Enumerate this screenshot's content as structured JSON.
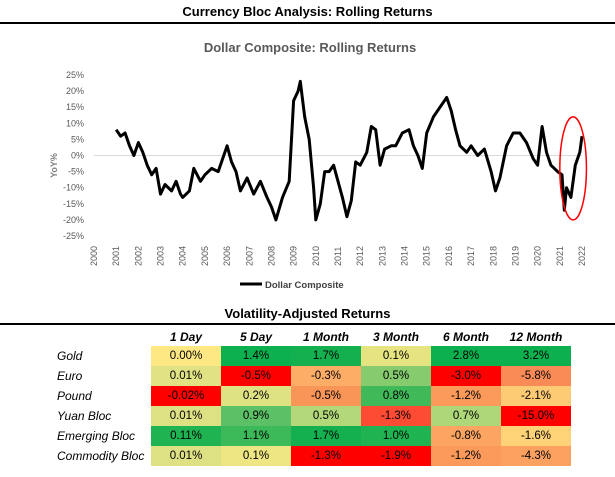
{
  "page_title": "Currency Bloc Analysis: Rolling Returns",
  "chart_data": {
    "type": "line",
    "title": "Dollar Composite: Rolling Returns",
    "ylabel": "YoY%",
    "xlabel": "",
    "ylim": [
      -25,
      25
    ],
    "xlim": [
      2000,
      2022
    ],
    "yticks": [
      "25%",
      "20%",
      "15%",
      "10%",
      "5%",
      "0%",
      "-5%",
      "-10%",
      "-15%",
      "-20%",
      "-25%"
    ],
    "xticks": [
      "2000",
      "2001",
      "2002",
      "2003",
      "2004",
      "2005",
      "2006",
      "2007",
      "2008",
      "2009",
      "2010",
      "2011",
      "2012",
      "2013",
      "2014",
      "2015",
      "2016",
      "2017",
      "2018",
      "2019",
      "2020",
      "2021",
      "2022"
    ],
    "legend": "bottom",
    "series": [
      {
        "name": "Dollar Composite",
        "color": "#000000",
        "x": [
          2001.0,
          2001.2,
          2001.4,
          2001.6,
          2001.8,
          2002.0,
          2002.2,
          2002.4,
          2002.6,
          2002.8,
          2003.0,
          2003.2,
          2003.5,
          2003.7,
          2003.9,
          2004.0,
          2004.3,
          2004.5,
          2004.8,
          2005.0,
          2005.3,
          2005.6,
          2005.9,
          2006.0,
          2006.2,
          2006.4,
          2006.6,
          2006.9,
          2007.2,
          2007.5,
          2007.8,
          2008.0,
          2008.2,
          2008.5,
          2008.8,
          2009.0,
          2009.2,
          2009.3,
          2009.5,
          2009.7,
          2009.9,
          2010.0,
          2010.2,
          2010.4,
          2010.6,
          2010.8,
          2011.0,
          2011.2,
          2011.4,
          2011.6,
          2011.8,
          2012.0,
          2012.3,
          2012.5,
          2012.7,
          2012.9,
          2013.1,
          2013.4,
          2013.6,
          2013.9,
          2014.2,
          2014.4,
          2014.6,
          2014.8,
          2015.0,
          2015.3,
          2015.6,
          2015.9,
          2016.1,
          2016.3,
          2016.5,
          2016.8,
          2017.0,
          2017.3,
          2017.6,
          2017.9,
          2018.1,
          2018.3,
          2018.6,
          2018.9,
          2019.2,
          2019.5,
          2019.8,
          2020.0,
          2020.2,
          2020.4,
          2020.6,
          2020.9,
          2021.1,
          2021.2,
          2021.3,
          2021.5,
          2021.7,
          2021.9,
          2022.0
        ],
        "y": [
          8,
          6,
          7,
          3,
          0,
          4,
          1,
          -3,
          -6,
          -4,
          -12,
          -9,
          -11,
          -8,
          -12,
          -13,
          -11,
          -4,
          -8,
          -6,
          -4,
          -5,
          1,
          3,
          -2,
          -5,
          -11,
          -7,
          -12,
          -8,
          -13,
          -16,
          -20,
          -13,
          -8,
          17,
          20,
          23,
          12,
          5,
          -10,
          -20,
          -15,
          -5,
          -5,
          -3,
          -8,
          -13,
          -19,
          -14,
          -2,
          -3,
          1,
          9,
          8,
          -3,
          2,
          3,
          3,
          7,
          8,
          3,
          0,
          -4,
          7,
          12,
          15,
          18,
          14,
          8,
          3,
          1,
          3,
          0,
          2,
          -5,
          -11,
          -7,
          3,
          7,
          7,
          4,
          -1,
          -3,
          9,
          1,
          -3,
          -5,
          -6,
          -17,
          -10,
          -13,
          -3,
          1,
          6
        ]
      }
    ],
    "annotation": {
      "type": "ellipse",
      "color": "#ff0000",
      "x_range": [
        2021.0,
        2022.2
      ],
      "y_range": [
        -20,
        12
      ]
    }
  },
  "table": {
    "title": "Volatility-Adjusted Returns",
    "columns": [
      "1 Day",
      "5 Day",
      "1 Month",
      "3 Month",
      "6 Month",
      "12 Month"
    ],
    "rows": [
      {
        "label": "Gold",
        "values": [
          "0.00%",
          "1.4%",
          "1.7%",
          "0.1%",
          "2.8%",
          "3.2%"
        ],
        "colors": [
          "#fde884",
          "#0cb04f",
          "#14b050",
          "#e6e480",
          "#0cb04f",
          "#0cb04f"
        ]
      },
      {
        "label": "Euro",
        "values": [
          "0.01%",
          "-0.5%",
          "-0.3%",
          "0.5%",
          "-3.0%",
          "-5.8%"
        ],
        "colors": [
          "#e0e283",
          "#ff0000",
          "#fdad66",
          "#86cb6d",
          "#ff0000",
          "#fb8b56"
        ]
      },
      {
        "label": "Pound",
        "values": [
          "-0.02%",
          "0.2%",
          "-0.5%",
          "0.8%",
          "-1.2%",
          "-2.1%"
        ],
        "colors": [
          "#ff0000",
          "#dfe283",
          "#fa9558",
          "#40b959",
          "#fb9a5b",
          "#fecb75"
        ]
      },
      {
        "label": "Yuan Bloc",
        "values": [
          "0.01%",
          "0.9%",
          "0.5%",
          "-1.3%",
          "0.7%",
          "-15.0%"
        ],
        "colors": [
          "#dde183",
          "#5cc166",
          "#b2d879",
          "#fe4b33",
          "#aed779",
          "#ff0000"
        ]
      },
      {
        "label": "Emerging Bloc",
        "values": [
          "0.11%",
          "1.1%",
          "1.7%",
          "1.0%",
          "-0.8%",
          "-1.6%"
        ],
        "colors": [
          "#1fb352",
          "#3cb959",
          "#14b050",
          "#20b352",
          "#fca461",
          "#fed277"
        ]
      },
      {
        "label": "Commodity Bloc",
        "values": [
          "0.01%",
          "0.1%",
          "-1.3%",
          "-1.9%",
          "-1.2%",
          "-4.3%"
        ],
        "colors": [
          "#dde183",
          "#eee583",
          "#ff0000",
          "#ff0000",
          "#fb9a5b",
          "#fca15f"
        ]
      }
    ]
  }
}
